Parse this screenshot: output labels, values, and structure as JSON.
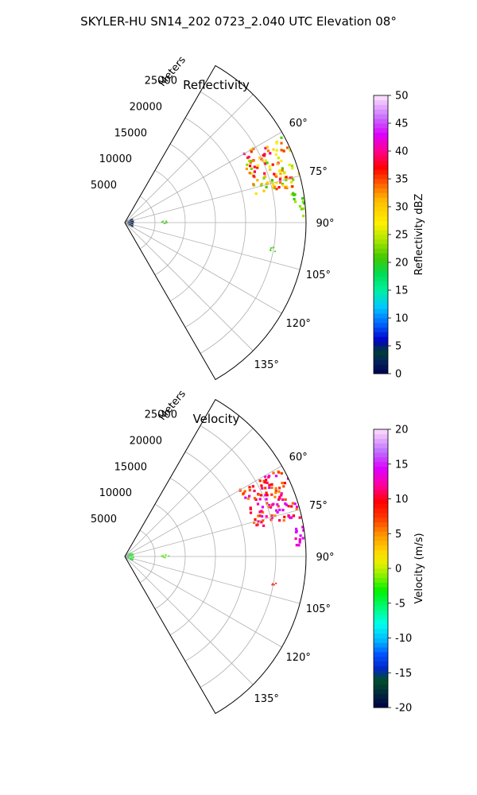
{
  "suptitle": "SKYLER-HU  SN14_202  0723_2.040 UTC Elevation 08°",
  "chart_data": [
    {
      "type": "heatmap",
      "projection": "polar-sector",
      "title": "Reflectivity",
      "radial_label": "Meters",
      "r_ticks": [
        5000,
        10000,
        15000,
        20000,
        25000
      ],
      "r_max": 30000,
      "theta_range_deg": [
        30,
        150
      ],
      "theta_ticks": [
        60,
        75,
        90,
        105,
        120,
        135
      ],
      "theta_tick_labels": [
        "60°",
        "75°",
        "90°",
        "105°",
        "120°",
        "135°"
      ],
      "grid": true,
      "colorbar": {
        "label": "Reflectivity dBZ",
        "min": 0,
        "max": 50,
        "ticks": [
          0,
          5,
          10,
          15,
          20,
          25,
          30,
          35,
          40,
          45,
          50
        ],
        "colormap": "pyart_NWSRef"
      },
      "echoes": [
        {
          "theta": [
            60,
            78
          ],
          "r": [
            22000,
            30000
          ],
          "value_range": [
            20,
            40
          ]
        },
        {
          "theta": [
            80,
            88
          ],
          "r": [
            28000,
            30000
          ],
          "value_range": [
            20,
            25
          ]
        },
        {
          "theta": [
            99,
            101
          ],
          "r": [
            24500,
            25500
          ],
          "value_range": [
            20,
            22
          ]
        },
        {
          "theta": [
            88,
            92
          ],
          "r": [
            6000,
            7500
          ],
          "value_range": [
            18,
            22
          ]
        },
        {
          "theta": [
            60,
            120
          ],
          "r": [
            0,
            1500
          ],
          "value_range": [
            0,
            5
          ]
        }
      ]
    },
    {
      "type": "heatmap",
      "projection": "polar-sector",
      "title": "Velocity",
      "radial_label": "Meters",
      "r_ticks": [
        5000,
        10000,
        15000,
        20000,
        25000
      ],
      "r_max": 30000,
      "theta_range_deg": [
        30,
        150
      ],
      "theta_ticks": [
        60,
        75,
        90,
        105,
        120,
        135
      ],
      "theta_tick_labels": [
        "60°",
        "75°",
        "90°",
        "105°",
        "120°",
        "135°"
      ],
      "grid": true,
      "colorbar": {
        "label": "Velocity (m/s)",
        "min": -20,
        "max": 20,
        "ticks": [
          -20,
          -15,
          -10,
          -5,
          0,
          5,
          10,
          15,
          20
        ],
        "colormap": "pyart_BuDRd18"
      },
      "echoes": [
        {
          "theta": [
            60,
            78
          ],
          "r": [
            22000,
            30000
          ],
          "value_range": [
            5,
            15
          ]
        },
        {
          "theta": [
            80,
            88
          ],
          "r": [
            28000,
            30000
          ],
          "value_range": [
            12,
            15
          ]
        },
        {
          "theta": [
            99,
            101
          ],
          "r": [
            24500,
            25500
          ],
          "value_range": [
            8,
            10
          ]
        },
        {
          "theta": [
            88,
            92
          ],
          "r": [
            6000,
            7500
          ],
          "value_range": [
            -3,
            0
          ]
        },
        {
          "theta": [
            60,
            120
          ],
          "r": [
            0,
            1500
          ],
          "value_range": [
            -5,
            -2
          ]
        }
      ]
    }
  ]
}
